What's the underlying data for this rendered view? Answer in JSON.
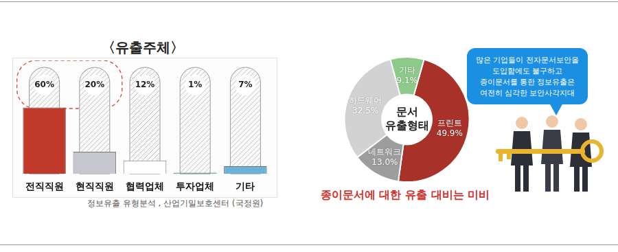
{
  "chart_data": [
    {
      "type": "bar",
      "title": "〈유출주체〉",
      "categories": [
        "전직직원",
        "현직직원",
        "협력업체",
        "투자업체",
        "기타"
      ],
      "values": [
        60,
        20,
        12,
        1,
        7
      ],
      "value_labels": [
        "60%",
        "20%",
        "12%",
        "1%",
        "7%"
      ],
      "colors": [
        "#c0392b",
        "#c6c6cf",
        "#ffffff",
        "#4caf73",
        "#6bb3d6"
      ],
      "ylim": [
        0,
        100
      ],
      "data_labels": true,
      "tick_labels": "x",
      "grid": false,
      "annotations": [
        "정보유출 유형분석 , 산업기밀보호센터 (국정원)"
      ]
    },
    {
      "type": "doughnut",
      "title": "문서 유출형태",
      "categories": [
        "프린트",
        "네트워크",
        "하드웨어",
        "기타"
      ],
      "values": [
        49.9,
        13.0,
        32.5,
        9.1
      ],
      "value_labels": [
        "49.9%",
        "13.0%",
        "32.5%",
        "9.1%"
      ],
      "colors": [
        "#a8322a",
        "#9d9d9d",
        "#d2d2d2",
        "#8cc98a"
      ],
      "data_labels": true,
      "annotations": [
        "종이문서에 대한 유출 대비는 미비",
        "많은 기업들이 전자문서보안을\n도입함에도 불구하고\n종이문서를 통한 정보유출은\n여전히 심각한 보안사각지대"
      ]
    }
  ]
}
